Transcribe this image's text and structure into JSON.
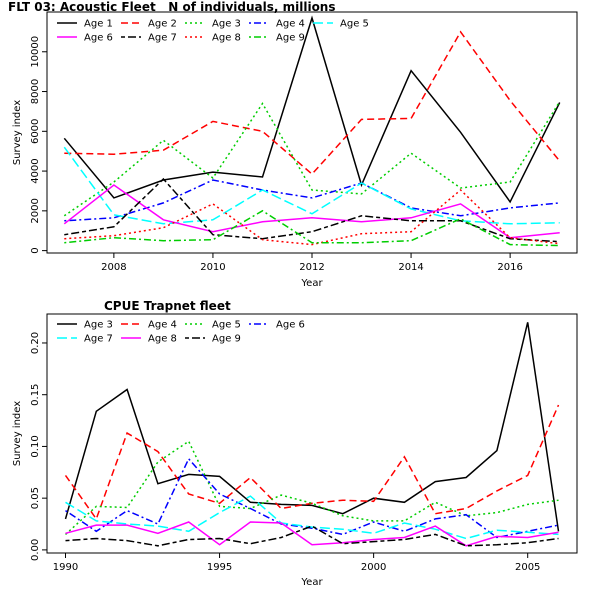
{
  "chart_data": [
    {
      "type": "line",
      "title": "FLT 03: Acoustic Fleet   N of individuals, millions",
      "xlabel": "Year",
      "ylabel": "Survey index",
      "x": [
        2007,
        2008,
        2009,
        2010,
        2011,
        2012,
        2013,
        2014,
        2015,
        2016,
        2017
      ],
      "xlim": [
        2006.65,
        2017.35
      ],
      "ylim": [
        -120,
        12000
      ],
      "xticks": [
        2008,
        2010,
        2012,
        2014,
        2016
      ],
      "yticks": [
        0,
        2000,
        4000,
        6000,
        8000,
        10000
      ],
      "grid": false,
      "legend_position": "top-left",
      "series": [
        {
          "name": "Age 1",
          "color": "#000000",
          "dash": "solid",
          "values": [
            5650,
            2650,
            3550,
            3950,
            3700,
            11700,
            3300,
            9050,
            5950,
            2450,
            7450
          ]
        },
        {
          "name": "Age 2",
          "color": "#ff0000",
          "dash": "dashed",
          "values": [
            4900,
            4850,
            5050,
            6500,
            6000,
            3850,
            6600,
            6650,
            11000,
            7550,
            4500
          ]
        },
        {
          "name": "Age 3",
          "color": "#00cd00",
          "dash": "dotted",
          "values": [
            1750,
            3450,
            5550,
            3650,
            7400,
            3050,
            2850,
            4900,
            3150,
            3450,
            7500
          ]
        },
        {
          "name": "Age 4",
          "color": "#0000ff",
          "dash": "dotdash",
          "values": [
            1500,
            1650,
            2400,
            3550,
            3050,
            2650,
            3400,
            2150,
            1750,
            2150,
            2400
          ]
        },
        {
          "name": "Age 5",
          "color": "#00ffff",
          "dash": "longdash",
          "values": [
            5200,
            1800,
            1350,
            1550,
            3050,
            1850,
            3400,
            2100,
            1500,
            1350,
            1400
          ]
        },
        {
          "name": "Age 6",
          "color": "#ff00ff",
          "dash": "solid",
          "values": [
            1350,
            3300,
            1550,
            950,
            1450,
            1650,
            1450,
            1650,
            2350,
            650,
            900
          ]
        },
        {
          "name": "Age 7",
          "color": "#000000",
          "dash": "twodash",
          "values": [
            800,
            1200,
            3600,
            800,
            600,
            950,
            1750,
            1500,
            1500,
            600,
            450
          ]
        },
        {
          "name": "Age 8",
          "color": "#ff0000",
          "dash": "dotted",
          "values": [
            600,
            750,
            1150,
            2350,
            550,
            300,
            850,
            950,
            3050,
            650,
            350
          ]
        },
        {
          "name": "Age 9",
          "color": "#00cd00",
          "dash": "dotdash",
          "values": [
            400,
            650,
            500,
            550,
            2000,
            400,
            400,
            500,
            1600,
            300,
            250
          ]
        }
      ]
    },
    {
      "type": "line",
      "title": "CPUE Trapnet fleet",
      "xlabel": "Year",
      "ylabel": "Survey index",
      "x": [
        1990,
        1991,
        1992,
        1993,
        1994,
        1995,
        1996,
        1997,
        1998,
        1999,
        2000,
        2001,
        2002,
        2003,
        2004,
        2005,
        2006
      ],
      "xlim": [
        1989.4,
        2006.6
      ],
      "ylim": [
        -0.003,
        0.228
      ],
      "xticks": [
        1990,
        1995,
        2000,
        2005
      ],
      "yticks": [
        0.0,
        0.05,
        0.1,
        0.15,
        0.2
      ],
      "ytick_labels": [
        "0.00",
        "0.05",
        "0.10",
        "0.15",
        "0.20"
      ],
      "grid": false,
      "legend_position": "top-left",
      "series": [
        {
          "name": "Age 3",
          "color": "#000000",
          "dash": "solid",
          "values": [
            0.03,
            0.134,
            0.155,
            0.064,
            0.073,
            0.071,
            0.046,
            0.044,
            0.043,
            0.035,
            0.05,
            0.046,
            0.066,
            0.07,
            0.096,
            0.22,
            0.018
          ]
        },
        {
          "name": "Age 4",
          "color": "#ff0000",
          "dash": "dashed",
          "values": [
            0.072,
            0.03,
            0.113,
            0.095,
            0.054,
            0.045,
            0.07,
            0.04,
            0.045,
            0.048,
            0.047,
            0.09,
            0.035,
            0.04,
            0.057,
            0.072,
            0.14
          ]
        },
        {
          "name": "Age 5",
          "color": "#00cd00",
          "dash": "dotted",
          "values": [
            0.015,
            0.042,
            0.041,
            0.085,
            0.105,
            0.042,
            0.04,
            0.053,
            0.045,
            0.033,
            0.028,
            0.028,
            0.046,
            0.033,
            0.036,
            0.044,
            0.048
          ]
        },
        {
          "name": "Age 6",
          "color": "#0000ff",
          "dash": "dotdash",
          "values": [
            0.038,
            0.018,
            0.038,
            0.025,
            0.088,
            0.054,
            0.04,
            0.025,
            0.021,
            0.015,
            0.027,
            0.018,
            0.03,
            0.034,
            0.012,
            0.018,
            0.024
          ]
        },
        {
          "name": "Age 7",
          "color": "#00ffff",
          "dash": "longdash",
          "values": [
            0.046,
            0.028,
            0.025,
            0.023,
            0.018,
            0.036,
            0.052,
            0.026,
            0.022,
            0.02,
            0.016,
            0.026,
            0.02,
            0.011,
            0.019,
            0.017,
            0.015
          ]
        },
        {
          "name": "Age 8",
          "color": "#ff00ff",
          "dash": "solid",
          "values": [
            0.016,
            0.024,
            0.024,
            0.016,
            0.027,
            0.005,
            0.027,
            0.026,
            0.005,
            0.007,
            0.01,
            0.012,
            0.023,
            0.004,
            0.013,
            0.012,
            0.017
          ]
        },
        {
          "name": "Age 9",
          "color": "#000000",
          "dash": "twodash",
          "values": [
            0.009,
            0.011,
            0.009,
            0.004,
            0.01,
            0.011,
            0.006,
            0.012,
            0.023,
            0.006,
            0.008,
            0.01,
            0.015,
            0.004,
            0.005,
            0.007,
            0.011
          ]
        }
      ]
    }
  ]
}
